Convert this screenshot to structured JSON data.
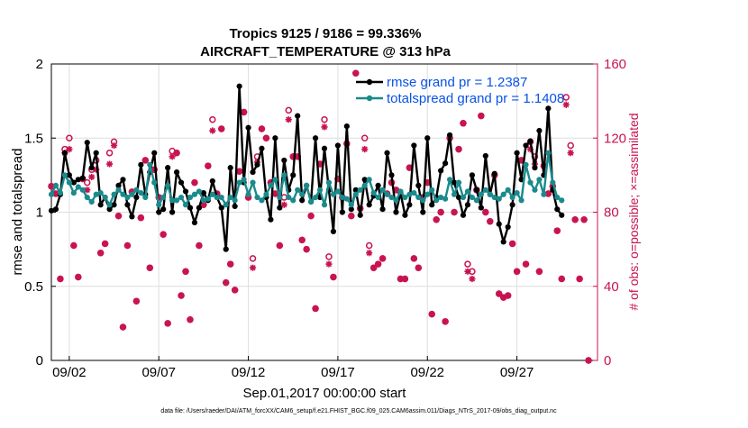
{
  "chart_data": {
    "type": "line",
    "title": "Tropics 9125 / 9186 = 99.336%",
    "subtitle": "AIRCRAFT_TEMPERATURE @ 313 hPa",
    "xlabel": "Sep.01,2017 00:00:00 start",
    "ylabel": "rmse and totalspread",
    "ylabel_right": "# of obs: o=possible; ×=assimilated",
    "xlim": [
      0,
      30.5
    ],
    "ylim": [
      0,
      2
    ],
    "ylim_right": [
      0,
      160
    ],
    "x_ticks": [
      {
        "value": 1,
        "label": "09/02"
      },
      {
        "value": 6,
        "label": "09/07"
      },
      {
        "value": 11,
        "label": "09/12"
      },
      {
        "value": 16,
        "label": "09/17"
      },
      {
        "value": 21,
        "label": "09/22"
      },
      {
        "value": 26,
        "label": "09/27"
      }
    ],
    "y_ticks": [
      "0",
      "0.5",
      "1",
      "1.5",
      "2"
    ],
    "y_ticks_right": [
      "0",
      "40",
      "80",
      "120",
      "160"
    ],
    "x_step_days": 0.25,
    "series": [
      {
        "name": "rmse grand pr = 1.2387",
        "color": "#000000",
        "values": [
          1.01,
          1.02,
          1.12,
          1.4,
          1.25,
          1.2,
          1.22,
          1.23,
          1.47,
          1.3,
          1.4,
          1.05,
          1.1,
          1.02,
          1.05,
          1.18,
          1.22,
          1.05,
          0.97,
          1.1,
          1.32,
          1.12,
          1.27,
          1.4,
          1.0,
          1.02,
          1.3,
          1.0,
          1.27,
          1.2,
          1.14,
          1.03,
          0.93,
          1.03,
          1.13,
          1.08,
          1.21,
          1.1,
          1.03,
          0.75,
          1.3,
          1.04,
          1.85,
          1.2,
          1.57,
          1.27,
          1.32,
          1.43,
          1.1,
          0.95,
          1.5,
          1.03,
          1.35,
          1.15,
          1.25,
          1.65,
          1.08,
          1.18,
          1.07,
          1.5,
          1.1,
          1.43,
          1.15,
          0.87,
          1.45,
          1.0,
          1.58,
          1.02,
          1.15,
          0.98,
          1.22,
          1.05,
          1.11,
          1.18,
          1.02,
          1.4,
          1.25,
          1.0,
          1.13,
          0.98,
          1.05,
          1.45,
          1.18,
          1.0,
          1.5,
          1.05,
          1.1,
          1.28,
          1.33,
          1.52,
          1.2,
          1.1,
          0.98,
          1.05,
          1.25,
          1.15,
          1.03,
          1.38,
          1.12,
          1.26,
          0.92,
          0.8,
          0.9,
          1.05,
          1.4,
          1.22,
          1.45,
          1.48,
          1.3,
          1.55,
          1.25,
          1.7,
          1.15,
          1.02,
          0.98
        ]
      },
      {
        "name": "totalspread grand pr = 1.1408",
        "color": "#1b8a8c",
        "values": [
          1.12,
          1.18,
          1.13,
          1.25,
          1.2,
          1.13,
          1.17,
          1.15,
          1.1,
          1.07,
          1.12,
          1.13,
          1.1,
          1.05,
          1.12,
          1.15,
          1.12,
          1.1,
          1.12,
          1.15,
          1.13,
          1.1,
          1.32,
          1.2,
          1.05,
          1.1,
          1.18,
          1.08,
          1.08,
          1.1,
          1.05,
          1.1,
          1.12,
          1.14,
          1.08,
          1.09,
          1.12,
          1.1,
          1.1,
          1.05,
          1.1,
          1.08,
          1.2,
          1.22,
          1.12,
          1.2,
          1.1,
          1.08,
          1.12,
          1.18,
          1.22,
          1.1,
          1.25,
          1.1,
          1.08,
          1.15,
          1.12,
          1.18,
          1.07,
          1.1,
          1.15,
          1.05,
          1.2,
          1.12,
          1.14,
          1.1,
          1.09,
          1.05,
          1.12,
          1.15,
          1.18,
          1.22,
          1.13,
          1.1,
          1.15,
          1.12,
          1.1,
          1.08,
          1.14,
          1.1,
          1.12,
          1.13,
          1.1,
          1.08,
          1.12,
          1.15,
          1.08,
          1.1,
          1.09,
          1.22,
          1.12,
          1.2,
          1.1,
          1.14,
          1.1,
          1.08,
          1.12,
          1.15,
          1.12,
          1.1,
          1.09,
          1.12,
          1.15,
          1.1,
          1.13,
          1.08,
          1.32,
          1.2,
          1.15,
          1.22,
          1.12,
          1.4,
          1.2,
          1.1,
          1.08
        ]
      }
    ],
    "obs_possible": [
      {
        "x": 0.0,
        "v": 94
      },
      {
        "x": 0.25,
        "v": 90
      },
      {
        "x": 0.5,
        "v": 44
      },
      {
        "x": 0.75,
        "v": 114
      },
      {
        "x": 1.0,
        "v": 120
      },
      {
        "x": 1.25,
        "v": 62
      },
      {
        "x": 1.5,
        "v": 45
      },
      {
        "x": 1.75,
        "v": 98
      },
      {
        "x": 2.0,
        "v": 96
      },
      {
        "x": 2.25,
        "v": 103
      },
      {
        "x": 2.5,
        "v": 108
      },
      {
        "x": 2.75,
        "v": 58
      },
      {
        "x": 3.0,
        "v": 63
      },
      {
        "x": 3.25,
        "v": 112
      },
      {
        "x": 3.5,
        "v": 118
      },
      {
        "x": 3.75,
        "v": 78
      },
      {
        "x": 4.0,
        "v": 18
      },
      {
        "x": 4.25,
        "v": 62
      },
      {
        "x": 4.5,
        "v": 91
      },
      {
        "x": 4.75,
        "v": 32
      },
      {
        "x": 5.0,
        "v": 77
      },
      {
        "x": 5.25,
        "v": 108
      },
      {
        "x": 5.5,
        "v": 50
      },
      {
        "x": 5.75,
        "v": 103
      },
      {
        "x": 6.0,
        "v": 88
      },
      {
        "x": 6.25,
        "v": 68
      },
      {
        "x": 6.5,
        "v": 20
      },
      {
        "x": 6.75,
        "v": 113
      },
      {
        "x": 7.0,
        "v": 112
      },
      {
        "x": 7.25,
        "v": 35
      },
      {
        "x": 7.5,
        "v": 48
      },
      {
        "x": 7.75,
        "v": 22
      },
      {
        "x": 8.0,
        "v": 96
      },
      {
        "x": 8.25,
        "v": 62
      },
      {
        "x": 8.5,
        "v": 84
      },
      {
        "x": 8.75,
        "v": 105
      },
      {
        "x": 9.0,
        "v": 130
      },
      {
        "x": 9.25,
        "v": 90
      },
      {
        "x": 9.5,
        "v": 125
      },
      {
        "x": 9.75,
        "v": 42
      },
      {
        "x": 10.0,
        "v": 52
      },
      {
        "x": 10.25,
        "v": 38
      },
      {
        "x": 10.5,
        "v": 102
      },
      {
        "x": 10.75,
        "v": 134
      },
      {
        "x": 11.0,
        "v": 88
      },
      {
        "x": 11.25,
        "v": 55
      },
      {
        "x": 11.5,
        "v": 110
      },
      {
        "x": 11.75,
        "v": 125
      },
      {
        "x": 12.0,
        "v": 120
      },
      {
        "x": 12.25,
        "v": 96
      },
      {
        "x": 12.5,
        "v": 90
      },
      {
        "x": 12.75,
        "v": 62
      },
      {
        "x": 13.0,
        "v": 88
      },
      {
        "x": 13.25,
        "v": 135
      },
      {
        "x": 13.5,
        "v": 110
      },
      {
        "x": 13.75,
        "v": 110
      },
      {
        "x": 14.0,
        "v": 65
      },
      {
        "x": 14.25,
        "v": 60
      },
      {
        "x": 14.5,
        "v": 78
      },
      {
        "x": 14.75,
        "v": 28
      },
      {
        "x": 15.0,
        "v": 106
      },
      {
        "x": 15.25,
        "v": 130
      },
      {
        "x": 15.5,
        "v": 56
      },
      {
        "x": 15.75,
        "v": 45
      },
      {
        "x": 16.0,
        "v": 98
      },
      {
        "x": 16.25,
        "v": 88
      },
      {
        "x": 16.5,
        "v": 117
      },
      {
        "x": 16.75,
        "v": 78
      },
      {
        "x": 17.0,
        "v": 155
      },
      {
        "x": 17.25,
        "v": 82
      },
      {
        "x": 17.5,
        "v": 120
      },
      {
        "x": 17.75,
        "v": 62
      },
      {
        "x": 18.0,
        "v": 50
      },
      {
        "x": 18.25,
        "v": 52
      },
      {
        "x": 18.5,
        "v": 55
      },
      {
        "x": 18.75,
        "v": 90
      },
      {
        "x": 19.0,
        "v": 96
      },
      {
        "x": 19.25,
        "v": 92
      },
      {
        "x": 19.5,
        "v": 44
      },
      {
        "x": 19.75,
        "v": 44
      },
      {
        "x": 20.0,
        "v": 104
      },
      {
        "x": 20.25,
        "v": 55
      },
      {
        "x": 20.5,
        "v": 50
      },
      {
        "x": 20.75,
        "v": 88
      },
      {
        "x": 21.0,
        "v": 96
      },
      {
        "x": 21.25,
        "v": 25
      },
      {
        "x": 21.5,
        "v": 76
      },
      {
        "x": 21.75,
        "v": 80
      },
      {
        "x": 22.0,
        "v": 21
      },
      {
        "x": 22.25,
        "v": 120
      },
      {
        "x": 22.5,
        "v": 80
      },
      {
        "x": 22.75,
        "v": 114
      },
      {
        "x": 23.0,
        "v": 128
      },
      {
        "x": 23.25,
        "v": 52
      },
      {
        "x": 23.5,
        "v": 48
      },
      {
        "x": 23.75,
        "v": 92
      },
      {
        "x": 24.0,
        "v": 132
      },
      {
        "x": 24.25,
        "v": 80
      },
      {
        "x": 24.5,
        "v": 75
      },
      {
        "x": 24.75,
        "v": 100
      },
      {
        "x": 25.0,
        "v": 36
      },
      {
        "x": 25.25,
        "v": 34
      },
      {
        "x": 25.5,
        "v": 35
      },
      {
        "x": 25.75,
        "v": 63
      },
      {
        "x": 26.0,
        "v": 48
      },
      {
        "x": 26.25,
        "v": 108
      },
      {
        "x": 26.5,
        "v": 52
      },
      {
        "x": 26.75,
        "v": 118
      },
      {
        "x": 27.0,
        "v": 110
      },
      {
        "x": 27.25,
        "v": 48
      },
      {
        "x": 27.5,
        "v": 105
      },
      {
        "x": 27.75,
        "v": 90
      },
      {
        "x": 28.0,
        "v": 94
      },
      {
        "x": 28.25,
        "v": 70
      },
      {
        "x": 28.5,
        "v": 44
      },
      {
        "x": 28.75,
        "v": 142
      },
      {
        "x": 29.0,
        "v": 116
      },
      {
        "x": 29.25,
        "v": 76
      },
      {
        "x": 29.5,
        "v": 44
      },
      {
        "x": 29.75,
        "v": 76
      },
      {
        "x": 30.0,
        "v": 0
      }
    ],
    "obs_assimilated": [
      {
        "x": 0.0,
        "v": 94
      },
      {
        "x": 0.25,
        "v": 90
      },
      {
        "x": 0.5,
        "v": 44
      },
      {
        "x": 0.75,
        "v": 112
      },
      {
        "x": 1.0,
        "v": 114
      },
      {
        "x": 1.25,
        "v": 62
      },
      {
        "x": 1.5,
        "v": 45
      },
      {
        "x": 1.75,
        "v": 98
      },
      {
        "x": 2.0,
        "v": 92
      },
      {
        "x": 2.25,
        "v": 99
      },
      {
        "x": 2.5,
        "v": 103
      },
      {
        "x": 2.75,
        "v": 58
      },
      {
        "x": 3.0,
        "v": 63
      },
      {
        "x": 3.25,
        "v": 106
      },
      {
        "x": 3.5,
        "v": 116
      },
      {
        "x": 3.75,
        "v": 78
      },
      {
        "x": 4.0,
        "v": 18
      },
      {
        "x": 4.25,
        "v": 62
      },
      {
        "x": 4.5,
        "v": 91
      },
      {
        "x": 4.75,
        "v": 32
      },
      {
        "x": 5.0,
        "v": 77
      },
      {
        "x": 5.25,
        "v": 108
      },
      {
        "x": 5.5,
        "v": 50
      },
      {
        "x": 5.75,
        "v": 103
      },
      {
        "x": 6.0,
        "v": 88
      },
      {
        "x": 6.25,
        "v": 68
      },
      {
        "x": 6.5,
        "v": 20
      },
      {
        "x": 6.75,
        "v": 110
      },
      {
        "x": 7.0,
        "v": 112
      },
      {
        "x": 7.25,
        "v": 35
      },
      {
        "x": 7.5,
        "v": 48
      },
      {
        "x": 7.75,
        "v": 22
      },
      {
        "x": 8.0,
        "v": 96
      },
      {
        "x": 8.25,
        "v": 62
      },
      {
        "x": 8.5,
        "v": 84
      },
      {
        "x": 8.75,
        "v": 105
      },
      {
        "x": 9.0,
        "v": 124
      },
      {
        "x": 9.25,
        "v": 90
      },
      {
        "x": 9.5,
        "v": 125
      },
      {
        "x": 9.75,
        "v": 42
      },
      {
        "x": 10.0,
        "v": 52
      },
      {
        "x": 10.25,
        "v": 38
      },
      {
        "x": 10.5,
        "v": 102
      },
      {
        "x": 10.75,
        "v": 134
      },
      {
        "x": 11.0,
        "v": 88
      },
      {
        "x": 11.25,
        "v": 50
      },
      {
        "x": 11.5,
        "v": 107
      },
      {
        "x": 11.75,
        "v": 125
      },
      {
        "x": 12.0,
        "v": 120
      },
      {
        "x": 12.25,
        "v": 96
      },
      {
        "x": 12.5,
        "v": 90
      },
      {
        "x": 12.75,
        "v": 62
      },
      {
        "x": 13.0,
        "v": 84
      },
      {
        "x": 13.25,
        "v": 130
      },
      {
        "x": 13.5,
        "v": 110
      },
      {
        "x": 13.75,
        "v": 110
      },
      {
        "x": 14.0,
        "v": 65
      },
      {
        "x": 14.25,
        "v": 60
      },
      {
        "x": 14.5,
        "v": 78
      },
      {
        "x": 14.75,
        "v": 28
      },
      {
        "x": 15.0,
        "v": 106
      },
      {
        "x": 15.25,
        "v": 126
      },
      {
        "x": 15.5,
        "v": 52
      },
      {
        "x": 15.75,
        "v": 45
      },
      {
        "x": 16.0,
        "v": 98
      },
      {
        "x": 16.25,
        "v": 88
      },
      {
        "x": 16.5,
        "v": 117
      },
      {
        "x": 16.75,
        "v": 78
      },
      {
        "x": 17.0,
        "v": 155
      },
      {
        "x": 17.25,
        "v": 82
      },
      {
        "x": 17.5,
        "v": 114
      },
      {
        "x": 17.75,
        "v": 58
      },
      {
        "x": 18.0,
        "v": 50
      },
      {
        "x": 18.25,
        "v": 52
      },
      {
        "x": 18.5,
        "v": 55
      },
      {
        "x": 18.75,
        "v": 90
      },
      {
        "x": 19.0,
        "v": 96
      },
      {
        "x": 19.25,
        "v": 92
      },
      {
        "x": 19.5,
        "v": 44
      },
      {
        "x": 19.75,
        "v": 44
      },
      {
        "x": 20.0,
        "v": 104
      },
      {
        "x": 20.25,
        "v": 55
      },
      {
        "x": 20.5,
        "v": 50
      },
      {
        "x": 20.75,
        "v": 88
      },
      {
        "x": 21.0,
        "v": 96
      },
      {
        "x": 21.25,
        "v": 25
      },
      {
        "x": 21.5,
        "v": 76
      },
      {
        "x": 21.75,
        "v": 80
      },
      {
        "x": 22.0,
        "v": 21
      },
      {
        "x": 22.25,
        "v": 120
      },
      {
        "x": 22.5,
        "v": 80
      },
      {
        "x": 22.75,
        "v": 114
      },
      {
        "x": 23.0,
        "v": 128
      },
      {
        "x": 23.25,
        "v": 48
      },
      {
        "x": 23.5,
        "v": 44
      },
      {
        "x": 23.75,
        "v": 92
      },
      {
        "x": 24.0,
        "v": 132
      },
      {
        "x": 24.25,
        "v": 80
      },
      {
        "x": 24.5,
        "v": 75
      },
      {
        "x": 24.75,
        "v": 100
      },
      {
        "x": 25.0,
        "v": 36
      },
      {
        "x": 25.25,
        "v": 34
      },
      {
        "x": 25.5,
        "v": 35
      },
      {
        "x": 25.75,
        "v": 63
      },
      {
        "x": 26.0,
        "v": 48
      },
      {
        "x": 26.25,
        "v": 108
      },
      {
        "x": 26.5,
        "v": 52
      },
      {
        "x": 26.75,
        "v": 114
      },
      {
        "x": 27.0,
        "v": 106
      },
      {
        "x": 27.25,
        "v": 48
      },
      {
        "x": 27.5,
        "v": 105
      },
      {
        "x": 27.75,
        "v": 90
      },
      {
        "x": 28.0,
        "v": 94
      },
      {
        "x": 28.25,
        "v": 70
      },
      {
        "x": 28.5,
        "v": 44
      },
      {
        "x": 28.75,
        "v": 138
      },
      {
        "x": 29.0,
        "v": 112
      },
      {
        "x": 29.25,
        "v": 76
      },
      {
        "x": 29.5,
        "v": 44
      },
      {
        "x": 29.75,
        "v": 76
      },
      {
        "x": 30.0,
        "v": 0
      }
    ],
    "obs_color": "#c8134f",
    "legend_position": "top-right",
    "grid": true,
    "footer": "data file: /Users/raeder/DAI/ATM_forcXX/CAM6_setup/f.e21.FHIST_BGC.f09_025.CAM6assim.011/Diags_NTrS_2017-09/obs_diag_output.nc"
  }
}
